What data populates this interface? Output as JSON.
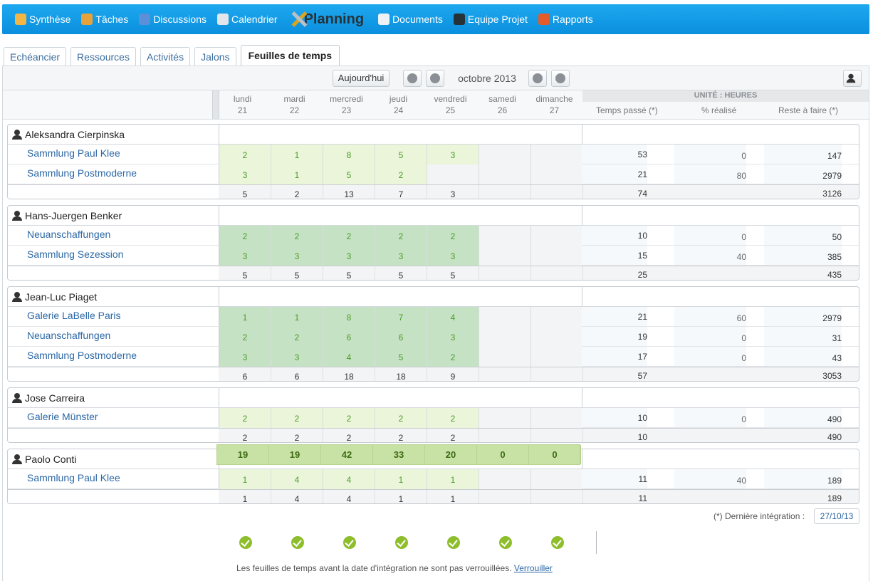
{
  "nav": [
    {
      "label": "Synthèse",
      "icon": "home-icon",
      "color": "#f3b544"
    },
    {
      "label": "Tâches",
      "icon": "clipboard-icon",
      "color": "#e8a23c"
    },
    {
      "label": "Discussions",
      "icon": "speech-bubble-icon",
      "color": "#5b8fd8"
    },
    {
      "label": "Calendrier",
      "icon": "calendar-icon",
      "color": "#e2e6ea"
    },
    {
      "label": "Planning",
      "icon": "crossed-tools-icon",
      "color": "#d9a521"
    },
    {
      "label": "Documents",
      "icon": "document-icon",
      "color": "#eef2f5"
    },
    {
      "label": "Equipe Projet",
      "icon": "person-icon",
      "color": "#263238"
    },
    {
      "label": "Rapports",
      "icon": "pie-chart-icon",
      "color": "#e45b2c"
    }
  ],
  "tabs": [
    "Echéancier",
    "Ressources",
    "Activités",
    "Jalons",
    "Feuilles de temps"
  ],
  "toolbar": {
    "today": "Aujourd'hui",
    "period": "octobre 2013"
  },
  "days": [
    {
      "name": "lundi",
      "num": "21"
    },
    {
      "name": "mardi",
      "num": "22"
    },
    {
      "name": "mercredi",
      "num": "23"
    },
    {
      "name": "jeudi",
      "num": "24"
    },
    {
      "name": "vendredi",
      "num": "25"
    },
    {
      "name": "samedi",
      "num": "26"
    },
    {
      "name": "dimanche",
      "num": "27"
    }
  ],
  "summary": {
    "unit": "UNITÉ : HEURES",
    "spent": "Temps passé (*)",
    "done": "% réalisé",
    "remaining": "Reste à faire (*)"
  },
  "colors": {
    "light_green": "#eaf5da",
    "medium_green": "#c6e2c4",
    "weekend": "#f3f4f5",
    "total_row": "#f3f4f5"
  },
  "people": [
    {
      "name": "Aleksandra Cierpinska",
      "shade": "light",
      "projects": [
        {
          "name": "Sammlung Paul Klee",
          "hours": [
            "2",
            "1",
            "8",
            "5",
            "3",
            "",
            ""
          ],
          "spent": "53",
          "done": "0",
          "remaining": "147"
        },
        {
          "name": "Sammlung Postmoderne",
          "hours": [
            "3",
            "1",
            "5",
            "2",
            "",
            "",
            ""
          ],
          "spent": "21",
          "done": "80",
          "remaining": "2979"
        }
      ],
      "totals": [
        "5",
        "2",
        "13",
        "7",
        "3",
        "",
        ""
      ],
      "spent_total": "74",
      "remaining_total": "3126"
    },
    {
      "name": "Hans-Juergen Benker",
      "shade": "medium",
      "projects": [
        {
          "name": "Neuanschaffungen",
          "hours": [
            "2",
            "2",
            "2",
            "2",
            "2",
            "",
            ""
          ],
          "spent": "10",
          "done": "0",
          "remaining": "50"
        },
        {
          "name": "Sammlung Sezession",
          "hours": [
            "3",
            "3",
            "3",
            "3",
            "3",
            "",
            ""
          ],
          "spent": "15",
          "done": "40",
          "remaining": "385"
        }
      ],
      "totals": [
        "5",
        "5",
        "5",
        "5",
        "5",
        "",
        ""
      ],
      "spent_total": "25",
      "remaining_total": "435"
    },
    {
      "name": "Jean-Luc Piaget",
      "shade": "medium",
      "projects": [
        {
          "name": "Galerie LaBelle Paris",
          "hours": [
            "1",
            "1",
            "8",
            "7",
            "4",
            "",
            ""
          ],
          "spent": "21",
          "done": "60",
          "remaining": "2979"
        },
        {
          "name": "Neuanschaffungen",
          "hours": [
            "2",
            "2",
            "6",
            "6",
            "3",
            "",
            ""
          ],
          "spent": "19",
          "done": "0",
          "remaining": "31"
        },
        {
          "name": "Sammlung Postmoderne",
          "hours": [
            "3",
            "3",
            "4",
            "5",
            "2",
            "",
            ""
          ],
          "spent": "17",
          "done": "0",
          "remaining": "43"
        }
      ],
      "totals": [
        "6",
        "6",
        "18",
        "18",
        "9",
        "",
        ""
      ],
      "spent_total": "57",
      "remaining_total": "3053"
    },
    {
      "name": "Jose Carreira",
      "shade": "light",
      "projects": [
        {
          "name": "Galerie Münster",
          "hours": [
            "2",
            "2",
            "2",
            "2",
            "2",
            "",
            ""
          ],
          "spent": "10",
          "done": "0",
          "remaining": "490"
        }
      ],
      "totals": [
        "2",
        "2",
        "2",
        "2",
        "2",
        "",
        ""
      ],
      "spent_total": "10",
      "remaining_total": "490"
    },
    {
      "name": "Paolo Conti",
      "shade": "light",
      "projects": [
        {
          "name": "Sammlung Paul Klee",
          "hours": [
            "1",
            "4",
            "4",
            "1",
            "1",
            "",
            ""
          ],
          "spent": "11",
          "done": "40",
          "remaining": "189"
        }
      ],
      "totals": [
        "1",
        "4",
        "4",
        "1",
        "1",
        "",
        ""
      ],
      "spent_total": "11",
      "remaining_total": "189"
    }
  ],
  "day_totals": [
    "19",
    "19",
    "42",
    "33",
    "20",
    "0",
    "0"
  ],
  "footer": {
    "integration_label": "(*) Dernière intégration :",
    "integration_date": "27/10/13",
    "lock_note": "Les feuilles de temps avant la date d'intégration ne sont pas verrouillées.",
    "lock_link": "Verrouiller"
  }
}
